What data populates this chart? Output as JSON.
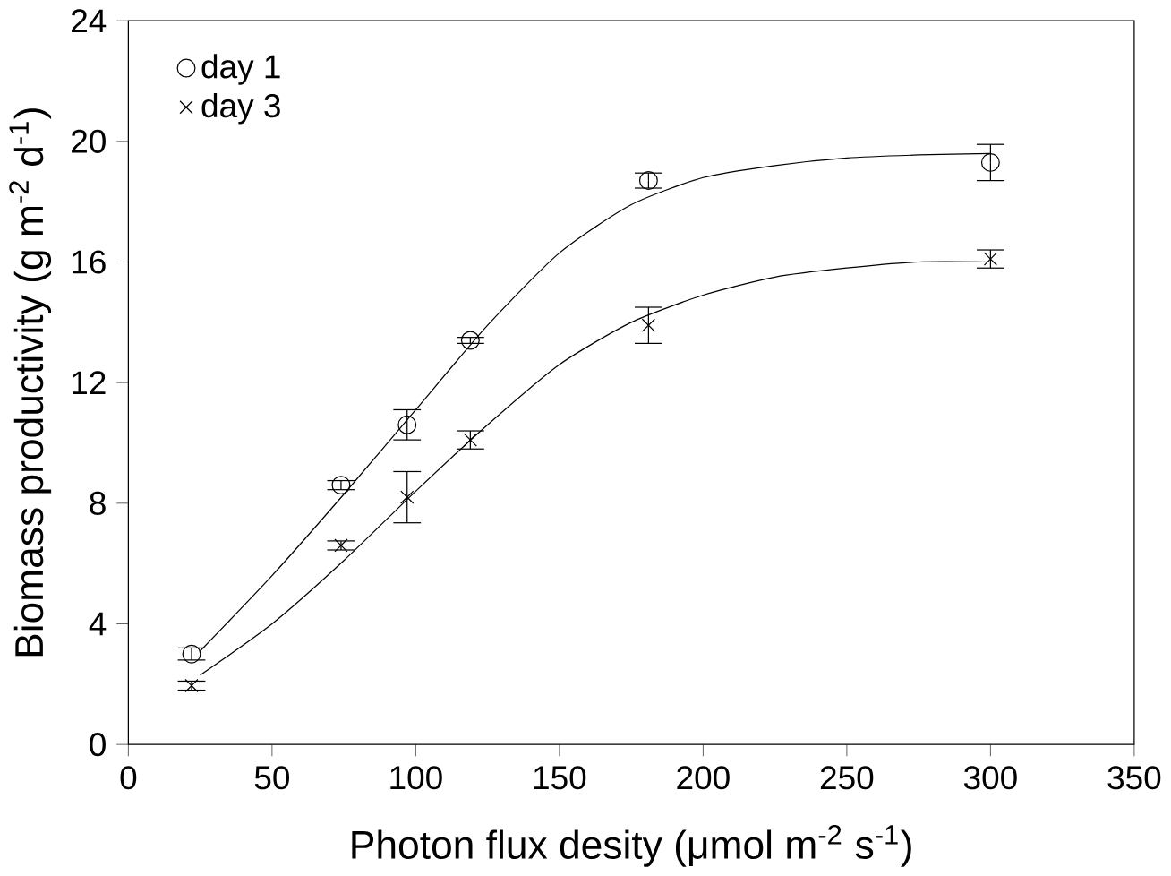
{
  "chart_data": {
    "type": "scatter",
    "xlabel": "Photon flux desity (μmol m$^{-2}$ s$^{-1}$)",
    "ylabel": "Biomass productivity (g m$^{-2}$ d$^{-1}$)",
    "xlim": [
      0,
      350
    ],
    "xticks": [
      0,
      50,
      100,
      150,
      200,
      250,
      300,
      350
    ],
    "ylim": [
      0,
      24
    ],
    "yticks": [
      0,
      4,
      8,
      12,
      16,
      20,
      24
    ],
    "legend": "top left",
    "grid": false,
    "series": [
      {
        "name": "day 1",
        "color": "#000000",
        "marker": "circle",
        "x": [
          22,
          74,
          97,
          119,
          181,
          300
        ],
        "values": [
          3.0,
          8.6,
          10.6,
          13.4,
          18.7,
          19.3
        ],
        "errors": [
          0.2,
          0.15,
          0.5,
          0.1,
          0.25,
          0.6
        ]
      },
      {
        "name": "day 3",
        "color": "#000000",
        "marker": "cross",
        "x": [
          22,
          74,
          97,
          119,
          181,
          300
        ],
        "values": [
          1.95,
          6.6,
          8.2,
          10.1,
          13.9,
          16.1
        ],
        "errors": [
          0.15,
          0.15,
          0.85,
          0.3,
          0.6,
          0.3
        ]
      },
      {
        "type": "line",
        "color": "#000000",
        "marker": "none",
        "x": [
          25,
          50,
          75,
          100,
          125,
          150,
          175,
          200,
          225,
          250,
          275,
          300
        ],
        "values": [
          3.1,
          5.6,
          8.3,
          11.1,
          13.9,
          16.3,
          17.9,
          18.8,
          19.2,
          19.45,
          19.55,
          19.6
        ]
      },
      {
        "type": "line",
        "color": "#000000",
        "marker": "none",
        "x": [
          25,
          50,
          75,
          100,
          125,
          150,
          175,
          200,
          225,
          250,
          275,
          300
        ],
        "values": [
          2.3,
          4.0,
          6.1,
          8.4,
          10.6,
          12.6,
          14.0,
          14.9,
          15.5,
          15.8,
          16.0,
          16.0
        ]
      }
    ]
  }
}
